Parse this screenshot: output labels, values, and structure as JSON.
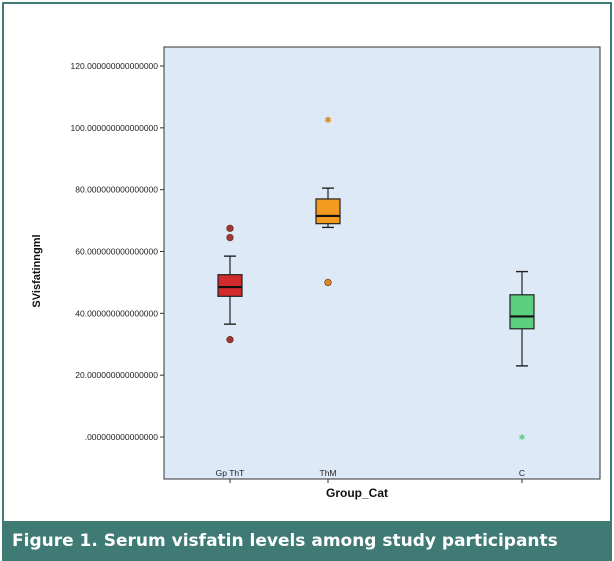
{
  "chart_data": {
    "type": "box",
    "ylabel": "SVisfatinngml",
    "xlabel": "Group_Cat",
    "ylim": [
      0,
      120
    ],
    "yticks": [
      ".000000000000000",
      "20.000000000000000",
      "40.000000000000000",
      "60.000000000000000",
      "80.000000000000000",
      "100.000000000000000",
      "120.000000000000000"
    ],
    "ytick_values": [
      0,
      20,
      40,
      60,
      80,
      100,
      120
    ],
    "categories": [
      "Gp ThT",
      "ThM",
      "C"
    ],
    "boxes": [
      {
        "category": "Gp ThT",
        "whisker_low": 36.5,
        "q1": 45.5,
        "median": 48.5,
        "q3": 52.5,
        "whisker_high": 58.5,
        "outliers": [
          31.5,
          64.5,
          67.5
        ],
        "color": "#d32b2b",
        "outlier_color": "#a23737"
      },
      {
        "category": "ThM",
        "whisker_low": 67.8,
        "q1": 69.0,
        "median": 71.5,
        "q3": 77.0,
        "whisker_high": 80.5,
        "outliers": [
          50.0,
          102.5
        ],
        "color": "#f39b1e",
        "outlier_color": "#d88a1e"
      },
      {
        "category": "C",
        "whisker_low": 23.0,
        "q1": 35.0,
        "median": 39.0,
        "q3": 46.0,
        "whisker_high": 53.5,
        "outliers": [
          0.0
        ],
        "color": "#5ccf7e",
        "outlier_color": "#5ccf7e"
      }
    ],
    "grid": false,
    "colors": {
      "plot_bg": "#dde9f7",
      "frame": "#3f7a74"
    }
  },
  "caption": "Figure 1. Serum visfatin levels among study participants"
}
